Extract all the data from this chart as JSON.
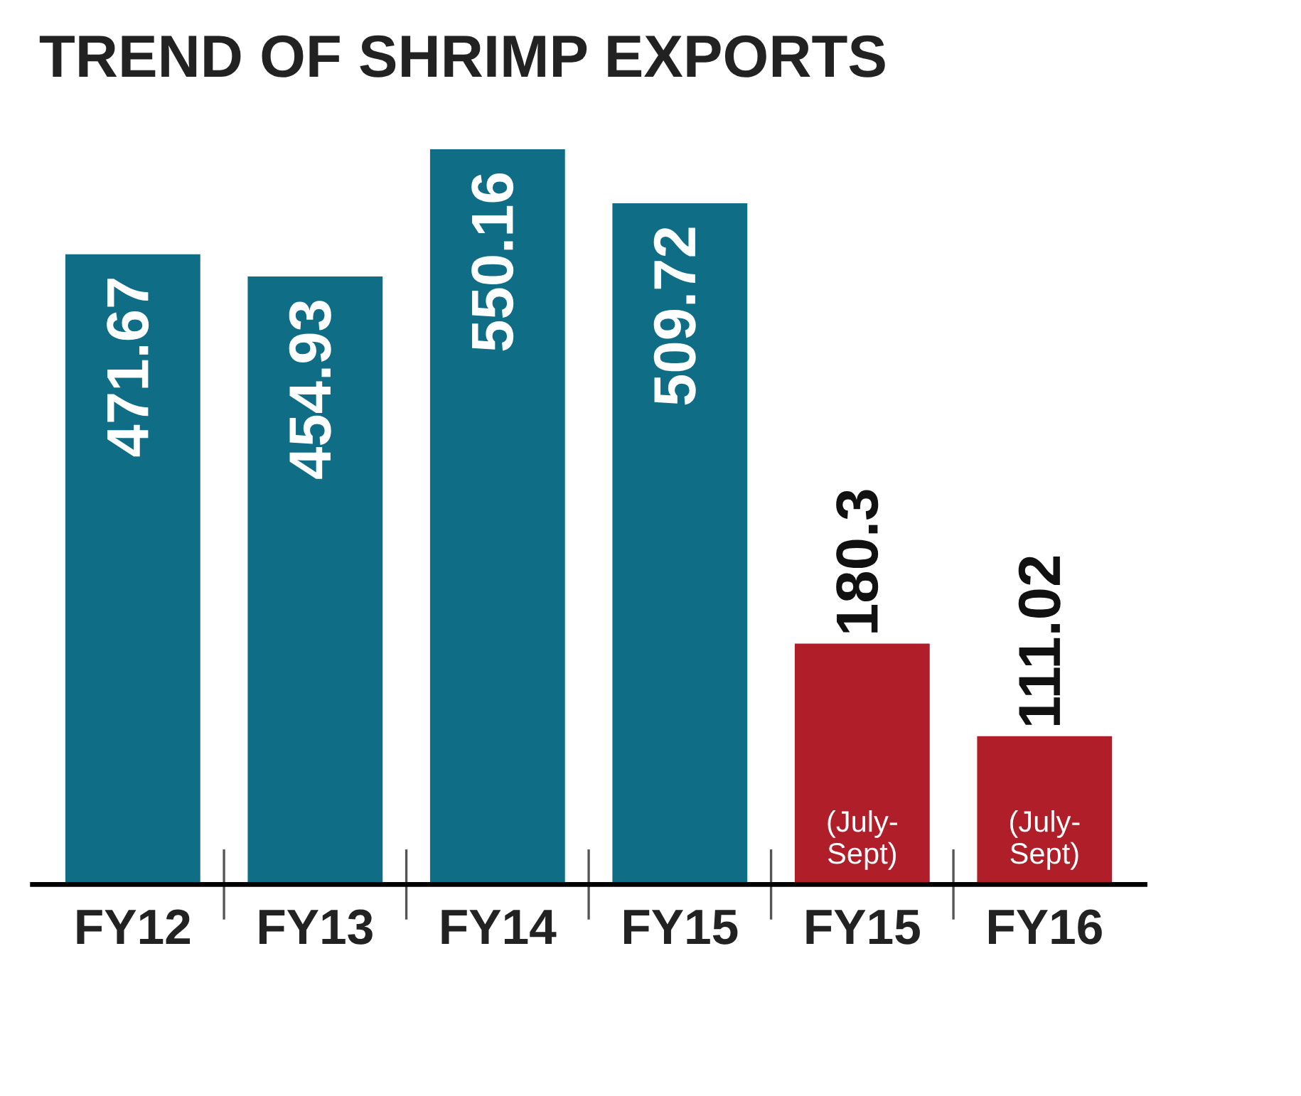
{
  "chart_data": {
    "type": "bar",
    "title": "TREND OF SHRIMP EXPORTS",
    "categories": [
      "FY12",
      "FY13",
      "FY14",
      "FY15",
      "FY15",
      "FY16"
    ],
    "values": [
      471.67,
      454.93,
      550.16,
      509.72,
      180.3,
      111.02
    ],
    "colors": [
      "#0f6e86",
      "#0f6e86",
      "#0f6e86",
      "#0f6e86",
      "#b01e2a",
      "#b01e2a"
    ],
    "data_labels": true,
    "annotations": [
      "(July-\nSept)",
      "(July-\nSept)"
    ],
    "grid": false,
    "legend": false
  }
}
